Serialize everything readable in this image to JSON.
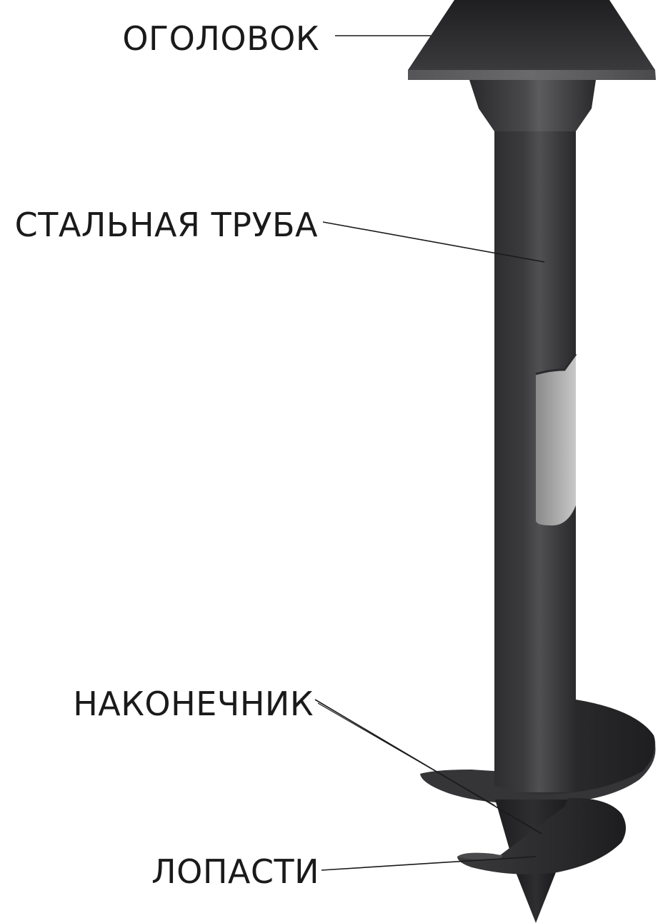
{
  "labels": {
    "head": "ОГОЛОВОК",
    "pipe": "СТАЛЬНАЯ ТРУБА",
    "tip": "НАКОНЕЧНИК",
    "blades": "ЛОПАСТИ"
  },
  "colors": {
    "steel_dark": "#2b2b2d",
    "steel_mid": "#4a4a4c",
    "steel_light": "#5a5a5c",
    "cutaway_light": "#9a9a9a",
    "leader_line": "#1a1a1a",
    "text": "#1a1a1a"
  }
}
